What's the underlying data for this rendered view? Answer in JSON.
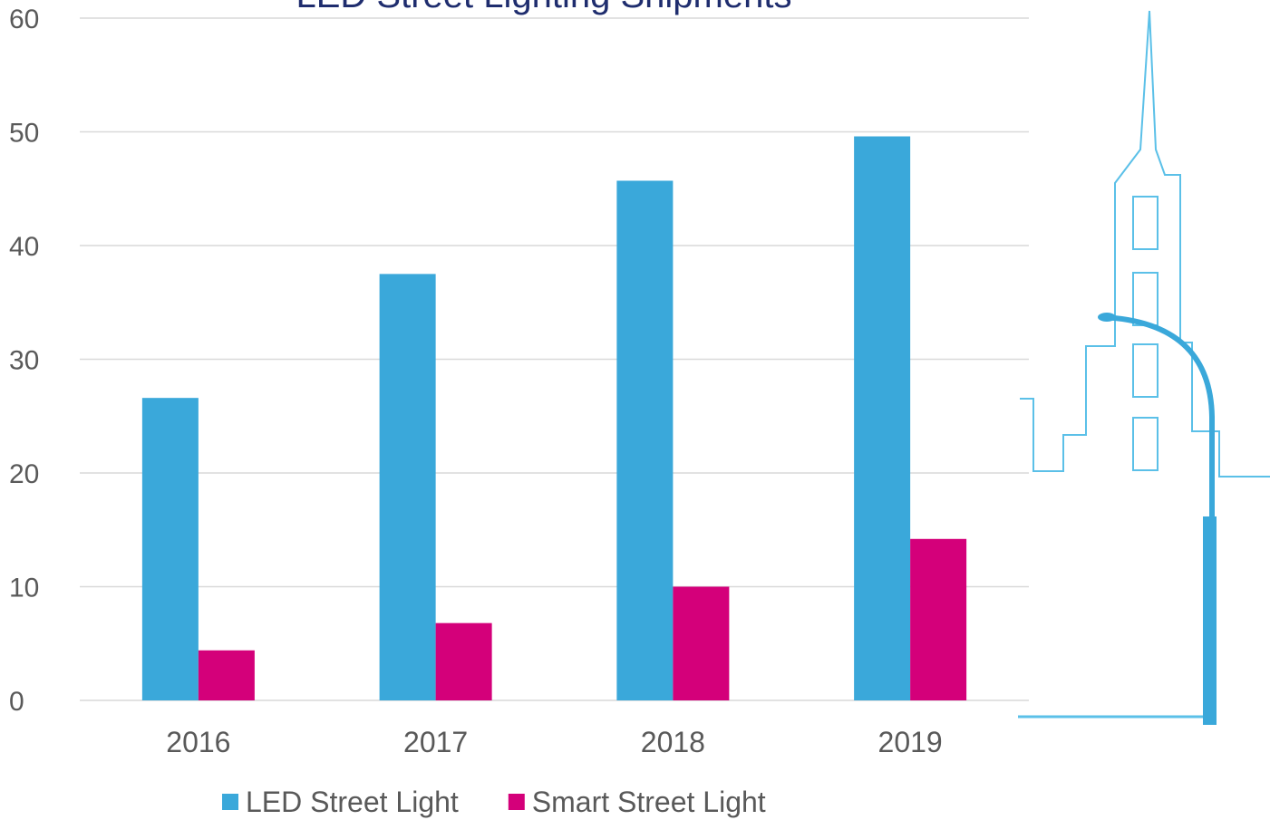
{
  "chart_data": {
    "type": "bar",
    "title": "LED Street Lighting Shipments",
    "categories": [
      "2016",
      "2017",
      "2018",
      "2019"
    ],
    "series": [
      {
        "name": "LED Street Light",
        "color": "#3aa8da",
        "values": [
          26.6,
          37.5,
          45.7,
          49.6
        ]
      },
      {
        "name": "Smart Street Light",
        "color": "#d4007a",
        "values": [
          4.4,
          6.8,
          10.0,
          14.2
        ]
      }
    ],
    "ylim": [
      0,
      60
    ],
    "yticks": [
      0,
      10,
      20,
      30,
      40,
      50,
      60
    ],
    "grid": true,
    "legend": "bottom"
  }
}
